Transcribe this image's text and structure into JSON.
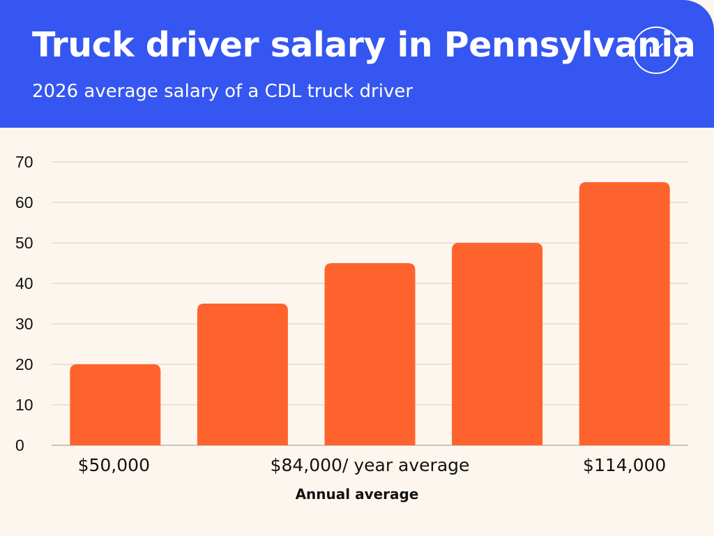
{
  "header": {
    "title": "Truck driver salary in Pennsylvania",
    "subtitle": "2026 average salary of a CDL truck driver",
    "arrow_icon": "arrow-down-left-icon"
  },
  "colors": {
    "header_bg": "#3556f0",
    "bar": "#ff632d",
    "background": "#fdf6ee",
    "grid": "#d5cfc8"
  },
  "chart_data": {
    "type": "bar",
    "values": [
      20,
      35,
      45,
      50,
      65
    ],
    "ylim": [
      0,
      70
    ],
    "yticks": [
      "0",
      "10",
      "20",
      "30",
      "40",
      "50",
      "60",
      "70"
    ],
    "category_labels": [
      {
        "bar_index": 0,
        "text": "$50,000"
      },
      {
        "bar_index": 2,
        "text": "$84,000/ year average"
      },
      {
        "bar_index": 4,
        "text": "$114,000"
      }
    ],
    "xlabel": "Annual average",
    "ylabel": "",
    "grid": true
  }
}
